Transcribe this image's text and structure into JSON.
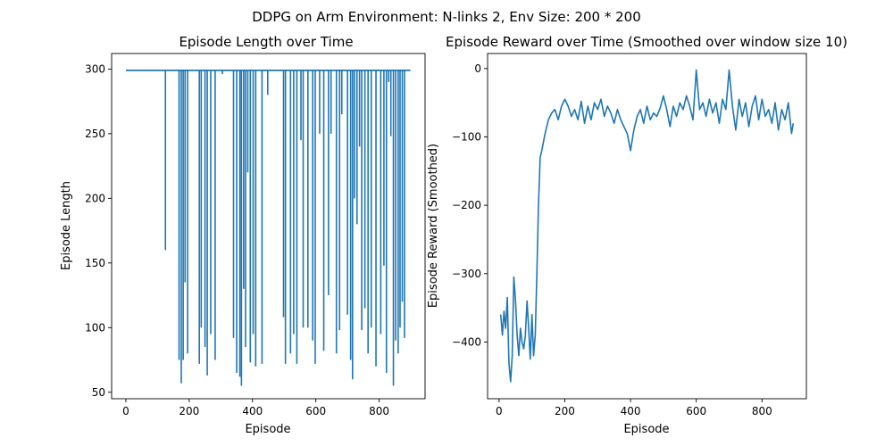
{
  "figure": {
    "suptitle": "DDPG on Arm Environment: N-links 2, Env Size: 200 * 200"
  },
  "chart_data": [
    {
      "type": "line",
      "title": "Episode Length over Time",
      "xlabel": "Episode",
      "ylabel": "Episode Length",
      "xlim": [
        -45,
        945
      ],
      "ylim": [
        45,
        312
      ],
      "xticks": [
        0,
        200,
        400,
        600,
        800
      ],
      "yticks": [
        50,
        100,
        150,
        200,
        250,
        300
      ],
      "grid": false,
      "color": "#1f77b4",
      "series": [
        {
          "baseline": 299,
          "episodes": 900,
          "dips": [
            [
              125,
              160
            ],
            [
              168,
              75
            ],
            [
              175,
              57
            ],
            [
              181,
              75
            ],
            [
              187,
              135
            ],
            [
              195,
              80
            ],
            [
              232,
              72
            ],
            [
              238,
              100
            ],
            [
              250,
              85
            ],
            [
              257,
              63
            ],
            [
              268,
              95
            ],
            [
              282,
              75
            ],
            [
              305,
              296
            ],
            [
              340,
              92
            ],
            [
              350,
              65
            ],
            [
              360,
              62
            ],
            [
              365,
              55
            ],
            [
              372,
              130
            ],
            [
              378,
              85
            ],
            [
              385,
              220
            ],
            [
              393,
              73
            ],
            [
              402,
              95
            ],
            [
              410,
              70
            ],
            [
              430,
              72
            ],
            [
              448,
              280
            ],
            [
              498,
              108
            ],
            [
              504,
              72
            ],
            [
              520,
              80
            ],
            [
              530,
              95
            ],
            [
              540,
              72
            ],
            [
              553,
              245
            ],
            [
              560,
              100
            ],
            [
              575,
              100
            ],
            [
              590,
              90
            ],
            [
              598,
              72
            ],
            [
              612,
              250
            ],
            [
              625,
              82
            ],
            [
              640,
              125
            ],
            [
              648,
              250
            ],
            [
              665,
              80
            ],
            [
              675,
              98
            ],
            [
              682,
              265
            ],
            [
              700,
              110
            ],
            [
              710,
              75
            ],
            [
              716,
              60
            ],
            [
              722,
              200
            ],
            [
              730,
              180
            ],
            [
              738,
              240
            ],
            [
              745,
              98
            ],
            [
              755,
              115
            ],
            [
              765,
              80
            ],
            [
              775,
              100
            ],
            [
              790,
              70
            ],
            [
              805,
              95
            ],
            [
              815,
              148
            ],
            [
              823,
              65
            ],
            [
              830,
              290
            ],
            [
              837,
              248
            ],
            [
              845,
              55
            ],
            [
              852,
              90
            ],
            [
              860,
              80
            ],
            [
              866,
              100
            ],
            [
              873,
              120
            ],
            [
              880,
              92
            ]
          ]
        }
      ]
    },
    {
      "type": "line",
      "title": "Episode Reward over Time (Smoothed over window size 10)",
      "xlabel": "Episode",
      "ylabel": "Episode Reward (Smoothed)",
      "xlim": [
        -35,
        935
      ],
      "ylim": [
        -483,
        22
      ],
      "xticks": [
        0,
        200,
        400,
        600,
        800
      ],
      "yticks": [
        0,
        -100,
        -200,
        -300,
        -400
      ],
      "grid": false,
      "color": "#1f77b4",
      "series": [
        {
          "x": [
            5,
            10,
            15,
            20,
            25,
            30,
            35,
            40,
            45,
            50,
            55,
            60,
            65,
            70,
            75,
            80,
            85,
            90,
            95,
            100,
            105,
            110,
            115,
            120,
            125,
            130,
            140,
            150,
            160,
            170,
            180,
            190,
            200,
            210,
            220,
            230,
            240,
            250,
            260,
            270,
            280,
            290,
            300,
            310,
            320,
            330,
            340,
            350,
            360,
            370,
            380,
            390,
            400,
            410,
            420,
            430,
            440,
            450,
            460,
            470,
            480,
            490,
            500,
            510,
            520,
            530,
            540,
            550,
            560,
            570,
            580,
            590,
            600,
            610,
            620,
            630,
            640,
            650,
            660,
            670,
            680,
            690,
            700,
            710,
            720,
            730,
            740,
            750,
            760,
            770,
            780,
            790,
            800,
            810,
            820,
            830,
            840,
            850,
            860,
            870,
            880,
            890,
            895
          ],
          "y": [
            -360,
            -390,
            -355,
            -380,
            -335,
            -430,
            -458,
            -420,
            -305,
            -340,
            -390,
            -420,
            -380,
            -400,
            -410,
            -390,
            -340,
            -380,
            -425,
            -360,
            -420,
            -390,
            -300,
            -200,
            -130,
            -120,
            -95,
            -75,
            -65,
            -60,
            -75,
            -55,
            -45,
            -55,
            -70,
            -60,
            -75,
            -48,
            -80,
            -55,
            -75,
            -50,
            -60,
            -45,
            -70,
            -55,
            -65,
            -80,
            -60,
            -75,
            -85,
            -95,
            -120,
            -90,
            -70,
            -60,
            -80,
            -55,
            -75,
            -65,
            -70,
            -58,
            -40,
            -60,
            -85,
            -55,
            -70,
            -50,
            -60,
            -40,
            -55,
            -75,
            -2,
            -60,
            -50,
            -70,
            -45,
            -65,
            -50,
            -80,
            -45,
            -60,
            -2,
            -55,
            -90,
            -45,
            -70,
            -50,
            -85,
            -55,
            -40,
            -75,
            -45,
            -70,
            -60,
            -80,
            -50,
            -90,
            -60,
            -75,
            -50,
            -95,
            -80
          ]
        }
      ]
    }
  ]
}
